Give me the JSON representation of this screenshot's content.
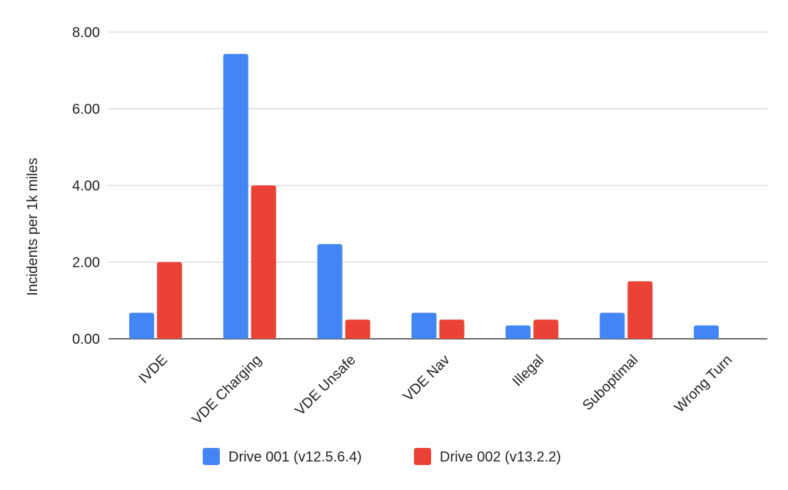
{
  "chart_data": {
    "type": "bar",
    "title": "",
    "xlabel": "",
    "ylabel": "Incidents per 1k miles",
    "ylim": [
      0,
      8
    ],
    "yticks": [
      "0.00",
      "2.00",
      "4.00",
      "6.00",
      "8.00"
    ],
    "ytick_values": [
      0,
      2,
      4,
      6,
      8
    ],
    "categories": [
      "IVDE",
      "VDE Charging",
      "VDE Unsafe",
      "VDE Nav",
      "Illegal",
      "Suboptimal",
      "Wrong Turn"
    ],
    "series": [
      {
        "name": "Drive 001 (v12.5.6.4)",
        "color": "#4285F4",
        "values": [
          0.68,
          7.43,
          2.47,
          0.68,
          0.35,
          0.68,
          0.35
        ]
      },
      {
        "name": "Drive 002 (v13.2.2)",
        "color": "#EA4335",
        "values": [
          2.0,
          4.0,
          0.5,
          0.5,
          0.5,
          1.5,
          0
        ]
      }
    ],
    "grid": true,
    "legend_position": "bottom"
  }
}
